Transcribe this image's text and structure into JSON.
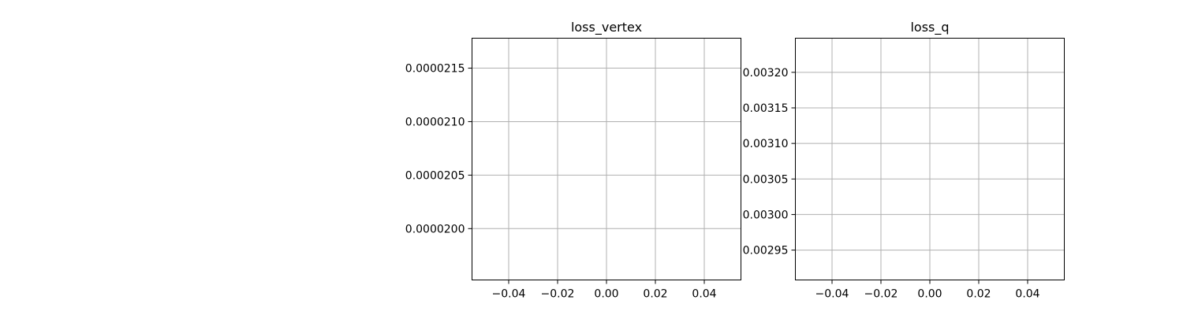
{
  "figure": {
    "background": "#ffffff",
    "grid_color": "#b0b0b0",
    "axis_color": "#000000"
  },
  "chart_data": [
    {
      "type": "line",
      "title": "loss_vertex",
      "xlabel": "",
      "ylabel": "",
      "series": [],
      "xlim": [
        -0.055,
        0.055
      ],
      "ylim": [
        1.952e-05,
        2.178e-05
      ],
      "xticks": [
        -0.04,
        -0.02,
        0.0,
        0.02,
        0.04
      ],
      "xtick_labels": [
        "−0.04",
        "−0.02",
        "0.00",
        "0.02",
        "0.04"
      ],
      "yticks": [
        2e-05,
        2.05e-05,
        2.1e-05,
        2.15e-05
      ],
      "ytick_labels": [
        "0.0000200",
        "0.0000205",
        "0.0000210",
        "0.0000215"
      ],
      "grid": true
    },
    {
      "type": "line",
      "title": "loss_q",
      "xlabel": "",
      "ylabel": "",
      "series": [],
      "xlim": [
        -0.055,
        0.055
      ],
      "ylim": [
        0.002908,
        0.003248
      ],
      "xticks": [
        -0.04,
        -0.02,
        0.0,
        0.02,
        0.04
      ],
      "xtick_labels": [
        "−0.04",
        "−0.02",
        "0.00",
        "0.02",
        "0.04"
      ],
      "yticks": [
        0.00295,
        0.003,
        0.00305,
        0.0031,
        0.00315,
        0.0032
      ],
      "ytick_labels": [
        "0.00295",
        "0.00300",
        "0.00305",
        "0.00310",
        "0.00315",
        "0.00320"
      ],
      "grid": true
    }
  ]
}
